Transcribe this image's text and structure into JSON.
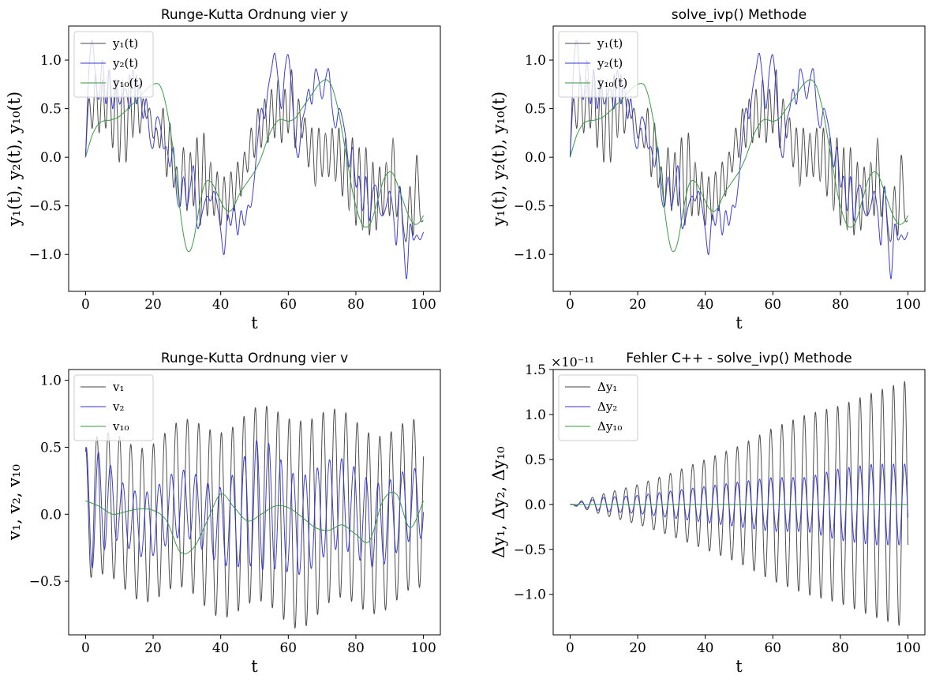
{
  "chart_data": [
    {
      "type": "line",
      "title": "Runge-Kutta Ordnung vier y",
      "xlabel": "t",
      "ylabel": "y₁(t), y₂(t), y₁₀(t)",
      "xlim": [
        -5,
        105
      ],
      "ylim": [
        -1.38,
        1.35
      ],
      "xticks": [
        0,
        20,
        40,
        60,
        80,
        100
      ],
      "yticks": [
        -1.0,
        -0.5,
        0.0,
        0.5,
        1.0
      ],
      "ytick_labels": [
        "−1.0",
        "−0.5",
        "0.0",
        "0.5",
        "1.0"
      ],
      "legend_position": "top-left",
      "series": [
        {
          "name": "y₁(t)",
          "color": "#444444",
          "x": [
            0,
            1,
            2,
            3,
            4,
            5,
            6,
            7,
            8,
            9,
            10,
            11,
            12,
            13,
            14,
            15,
            16,
            17,
            18,
            19,
            20,
            21,
            22,
            23,
            24,
            25,
            26,
            27,
            28,
            29,
            30,
            31,
            32,
            33,
            34,
            35,
            36,
            37,
            38,
            39,
            40,
            41,
            42,
            43,
            44,
            45,
            46,
            47,
            48,
            49,
            50,
            51,
            52,
            53,
            54,
            55,
            56,
            57,
            58,
            59,
            60,
            61,
            62,
            63,
            64,
            65,
            66,
            67,
            68,
            69,
            70,
            71,
            72,
            73,
            74,
            75,
            76,
            77,
            78,
            79,
            80,
            81,
            82,
            83,
            84,
            85,
            86,
            87,
            88,
            89,
            90,
            91,
            92,
            93,
            94,
            95,
            96,
            97,
            98,
            99,
            100
          ],
          "values": [
            0.0,
            0.6,
            0.3,
            0.85,
            0.25,
            0.8,
            0.3,
            0.9,
            0.1,
            0.75,
            -0.05,
            0.8,
            -0.05,
            0.85,
            0.2,
            0.85,
            0.25,
            0.6,
            0.4,
            0.5,
            0.2,
            0.3,
            0.1,
            0.5,
            -0.2,
            0.35,
            -0.3,
            -0.1,
            -0.5,
            0.1,
            -0.55,
            0.05,
            -0.5,
            0.2,
            -0.7,
            0.25,
            -0.6,
            -0.05,
            -0.6,
            -0.15,
            -0.7,
            -0.2,
            -0.65,
            -0.15,
            -0.55,
            -0.05,
            -0.4,
            0.05,
            -0.15,
            0.3,
            0.0,
            0.5,
            0.1,
            0.6,
            0.15,
            0.7,
            0.2,
            0.8,
            0.15,
            0.7,
            0.25,
            0.9,
            0.1,
            0.6,
            0.2,
            0.4,
            -0.1,
            0.3,
            -0.3,
            0.3,
            -0.2,
            0.25,
            -0.2,
            0.3,
            -0.25,
            0.3,
            -0.4,
            0.2,
            -0.55,
            0.2,
            -0.7,
            0.1,
            -0.75,
            0.1,
            -0.8,
            -0.05,
            -0.75,
            -0.1,
            -0.6,
            -0.05,
            -0.6,
            0.2,
            -0.6,
            -0.3,
            -0.7,
            -0.85,
            -0.3,
            -0.8,
            0.02,
            -0.6,
            -0.65
          ]
        },
        {
          "name": "y₂(t)",
          "color": "#3333dd",
          "x": [
            0,
            1,
            2,
            3,
            4,
            5,
            6,
            7,
            8,
            9,
            10,
            11,
            12,
            13,
            14,
            15,
            16,
            17,
            18,
            19,
            20,
            21,
            22,
            23,
            24,
            25,
            26,
            27,
            28,
            29,
            30,
            31,
            32,
            33,
            34,
            35,
            36,
            37,
            38,
            39,
            40,
            41,
            42,
            43,
            44,
            45,
            46,
            47,
            48,
            49,
            50,
            51,
            52,
            53,
            54,
            55,
            56,
            57,
            58,
            59,
            60,
            61,
            62,
            63,
            64,
            65,
            66,
            67,
            68,
            69,
            70,
            71,
            72,
            73,
            74,
            75,
            76,
            77,
            78,
            79,
            80,
            81,
            82,
            83,
            84,
            85,
            86,
            87,
            88,
            89,
            90,
            91,
            92,
            93,
            94,
            95,
            96,
            97,
            98,
            99,
            100
          ],
          "values": [
            0.0,
            0.9,
            1.2,
            0.8,
            0.6,
            1.0,
            0.55,
            0.9,
            0.5,
            0.8,
            0.55,
            0.65,
            0.7,
            0.5,
            0.9,
            0.55,
            0.75,
            0.4,
            0.6,
            0.2,
            0.1,
            0.4,
            0.35,
            0.1,
            0.1,
            -0.1,
            0.1,
            -0.4,
            -0.5,
            -0.2,
            -0.5,
            -0.3,
            -0.1,
            -0.7,
            -0.65,
            -0.5,
            -0.4,
            -0.45,
            -0.35,
            -0.5,
            -0.75,
            -1.0,
            -0.6,
            -0.7,
            -0.5,
            -0.8,
            -0.55,
            -0.7,
            -0.5,
            -0.5,
            -0.2,
            0.2,
            0.5,
            0.4,
            0.7,
            0.9,
            1.07,
            0.8,
            0.5,
            0.9,
            1.05,
            0.7,
            0.2,
            0.0,
            0.35,
            0.5,
            0.7,
            0.55,
            0.9,
            0.8,
            0.6,
            0.8,
            0.9,
            0.5,
            0.3,
            0.5,
            0.4,
            0.2,
            -0.1,
            0.1,
            -0.3,
            -0.2,
            -0.55,
            -0.2,
            -0.65,
            -0.35,
            -0.3,
            -0.55,
            -0.6,
            -0.5,
            -0.35,
            -0.55,
            -0.9,
            -0.3,
            -0.8,
            -1.25,
            -0.7,
            -0.85,
            -0.8,
            -0.85,
            -0.77
          ]
        },
        {
          "name": "y₁₀(t)",
          "color": "#33993a",
          "x": [
            0,
            1,
            2,
            3,
            4,
            5,
            6,
            7,
            8,
            9,
            10,
            11,
            12,
            13,
            14,
            15,
            16,
            17,
            18,
            19,
            20,
            21,
            22,
            23,
            24,
            25,
            26,
            27,
            28,
            29,
            30,
            31,
            32,
            33,
            34,
            35,
            36,
            37,
            38,
            39,
            40,
            41,
            42,
            43,
            44,
            45,
            46,
            47,
            48,
            49,
            50,
            51,
            52,
            53,
            54,
            55,
            56,
            57,
            58,
            59,
            60,
            61,
            62,
            63,
            64,
            65,
            66,
            67,
            68,
            69,
            70,
            71,
            72,
            73,
            74,
            75,
            76,
            77,
            78,
            79,
            80,
            81,
            82,
            83,
            84,
            85,
            86,
            87,
            88,
            89,
            90,
            91,
            92,
            93,
            94,
            95,
            96,
            97,
            98,
            99,
            100
          ],
          "values": [
            0.0,
            0.12,
            0.23,
            0.3,
            0.35,
            0.37,
            0.38,
            0.38,
            0.39,
            0.4,
            0.42,
            0.45,
            0.48,
            0.52,
            0.55,
            0.58,
            0.62,
            0.66,
            0.7,
            0.73,
            0.75,
            0.76,
            0.74,
            0.65,
            0.5,
            0.3,
            0.05,
            -0.25,
            -0.55,
            -0.8,
            -0.95,
            -0.96,
            -0.85,
            -0.65,
            -0.45,
            -0.3,
            -0.24,
            -0.25,
            -0.3,
            -0.38,
            -0.45,
            -0.52,
            -0.55,
            -0.55,
            -0.5,
            -0.42,
            -0.35,
            -0.3,
            -0.25,
            -0.2,
            -0.15,
            -0.08,
            0.0,
            0.1,
            0.2,
            0.28,
            0.34,
            0.38,
            0.39,
            0.38,
            0.37,
            0.38,
            0.4,
            0.45,
            0.5,
            0.55,
            0.6,
            0.65,
            0.7,
            0.75,
            0.78,
            0.8,
            0.78,
            0.72,
            0.6,
            0.45,
            0.25,
            0.05,
            -0.15,
            -0.35,
            -0.5,
            -0.62,
            -0.7,
            -0.72,
            -0.7,
            -0.62,
            -0.5,
            -0.38,
            -0.25,
            -0.18,
            -0.15,
            -0.17,
            -0.25,
            -0.35,
            -0.45,
            -0.55,
            -0.63,
            -0.68,
            -0.69,
            -0.66,
            -0.6
          ]
        }
      ]
    },
    {
      "type": "line",
      "title": "solve_ivp() Methode",
      "xlabel": "t",
      "ylabel": "y₁(t), y₂(t), y₁₀(t)",
      "xlim": [
        -5,
        105
      ],
      "ylim": [
        -1.38,
        1.35
      ],
      "xticks": [
        0,
        20,
        40,
        60,
        80,
        100
      ],
      "yticks": [
        -1.0,
        -0.5,
        0.0,
        0.5,
        1.0
      ],
      "ytick_labels": [
        "−1.0",
        "−0.5",
        "0.0",
        "0.5",
        "1.0"
      ],
      "legend_position": "top-left",
      "series_same_as_panel": 0,
      "series": [
        {
          "name": "y₁(t)",
          "color": "#444444"
        },
        {
          "name": "y₂(t)",
          "color": "#3333dd"
        },
        {
          "name": "y₁₀(t)",
          "color": "#33993a"
        }
      ]
    },
    {
      "type": "line",
      "title": "Runge-Kutta Ordnung vier v",
      "xlabel": "t",
      "ylabel": "v₁, v₂, v₁₀",
      "xlim": [
        -5,
        105
      ],
      "ylim": [
        -0.9,
        1.08
      ],
      "xticks": [
        0,
        20,
        40,
        60,
        80,
        100
      ],
      "yticks": [
        -0.5,
        0.0,
        0.5,
        1.0
      ],
      "ytick_labels": [
        "−0.5",
        "0.0",
        "0.5",
        "1.0"
      ],
      "legend_position": "top-left",
      "series": [
        {
          "name": "v₁",
          "color": "#444444",
          "amplitude": [
            [
              0,
              0.5
            ],
            [
              10,
              0.55
            ],
            [
              25,
              0.6
            ],
            [
              37,
              0.68
            ],
            [
              50,
              0.72
            ],
            [
              63,
              0.78
            ],
            [
              75,
              0.7
            ],
            [
              90,
              0.65
            ],
            [
              100,
              0.62
            ]
          ],
          "period": 3.35,
          "phase": 1.57,
          "x_range": [
            0,
            100
          ]
        },
        {
          "name": "v₂",
          "color": "#3333dd",
          "amplitude": [
            [
              0,
              0.5
            ],
            [
              10,
              0.22
            ],
            [
              20,
              0.25
            ],
            [
              30,
              0.25
            ],
            [
              40,
              0.28
            ],
            [
              52,
              0.5
            ],
            [
              60,
              0.38
            ],
            [
              70,
              0.35
            ],
            [
              85,
              0.32
            ],
            [
              100,
              0.25
            ]
          ],
          "period": 3.6,
          "phase": 1.2,
          "x_range": [
            0,
            100
          ]
        },
        {
          "name": "v₁₀",
          "color": "#33993a",
          "x": [
            0,
            4,
            8,
            12,
            16,
            20,
            24,
            28,
            32,
            36,
            40,
            44,
            48,
            52,
            56,
            60,
            64,
            68,
            72,
            76,
            80,
            84,
            88,
            92,
            96,
            100
          ],
          "values": [
            0.1,
            0.06,
            0.0,
            0.02,
            0.04,
            0.03,
            -0.05,
            -0.28,
            -0.25,
            -0.05,
            0.15,
            0.05,
            -0.05,
            0.0,
            0.06,
            0.05,
            -0.02,
            -0.1,
            -0.12,
            -0.08,
            -0.15,
            -0.2,
            0.1,
            0.15,
            -0.1,
            0.1
          ]
        }
      ]
    },
    {
      "type": "line",
      "title": "Fehler C++ - solve_ivp() Methode",
      "xlabel": "t",
      "ylabel": "Δy₁, Δy₂, Δy₁₀",
      "offset_text": "×10⁻¹¹",
      "xlim": [
        -5,
        105
      ],
      "ylim": [
        -1.45,
        1.5
      ],
      "xticks": [
        0,
        20,
        40,
        60,
        80,
        100
      ],
      "yticks": [
        -1.0,
        -0.5,
        0.0,
        0.5,
        1.0,
        1.5
      ],
      "ytick_labels": [
        "−1.0",
        "−0.5",
        "0.0",
        "0.5",
        "1.0",
        "1.5"
      ],
      "legend_position": "top-left",
      "series": [
        {
          "name": "Δy₁",
          "color": "#444444",
          "envelope": [
            [
              0,
              0.0
            ],
            [
              10,
              0.12
            ],
            [
              20,
              0.22
            ],
            [
              30,
              0.35
            ],
            [
              40,
              0.5
            ],
            [
              50,
              0.65
            ],
            [
              60,
              0.85
            ],
            [
              70,
              1.0
            ],
            [
              80,
              1.1
            ],
            [
              90,
              1.25
            ],
            [
              100,
              1.38
            ]
          ],
          "period": 3.3,
          "x_range": [
            0,
            100
          ]
        },
        {
          "name": "Δy₂",
          "color": "#3333dd",
          "envelope": [
            [
              0,
              0.0
            ],
            [
              10,
              0.08
            ],
            [
              20,
              0.1
            ],
            [
              30,
              0.15
            ],
            [
              40,
              0.2
            ],
            [
              50,
              0.25
            ],
            [
              60,
              0.3
            ],
            [
              70,
              0.3
            ],
            [
              80,
              0.4
            ],
            [
              90,
              0.45
            ],
            [
              100,
              0.45
            ]
          ],
          "period": 3.3,
          "x_range": [
            0,
            100
          ]
        },
        {
          "name": "Δy₁₀",
          "color": "#33993a",
          "x": [
            0,
            100
          ],
          "values": [
            0.0,
            0.0
          ]
        }
      ]
    }
  ]
}
